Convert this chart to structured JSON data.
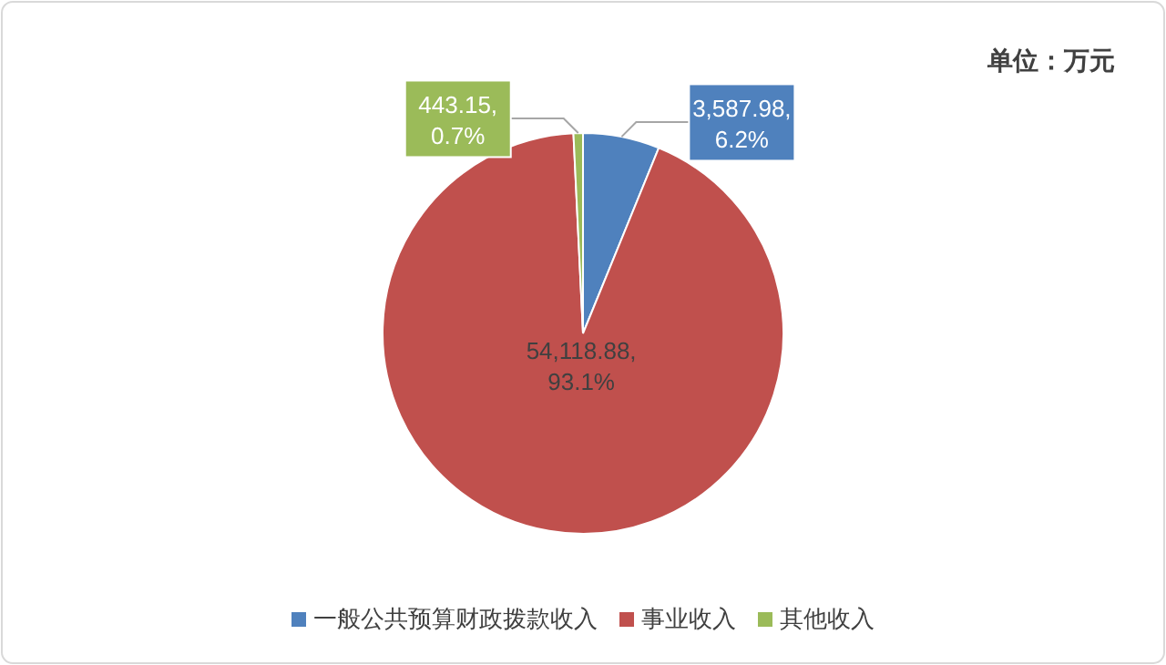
{
  "chart_data": {
    "type": "pie",
    "categories": [
      "一般公共预算财政拨款收入",
      "事业收入",
      "其他收入"
    ],
    "values": [
      3587.98,
      54118.88,
      443.15
    ],
    "colors": [
      "#4f81bd",
      "#c0504d",
      "#9bbb59"
    ],
    "value_labels": [
      "3,587.98,\n6.2%",
      "54,118.88,\n93.1%",
      "443.15,\n0.7%"
    ],
    "legend": "bottom",
    "annotations": [
      "单位：万元"
    ]
  }
}
